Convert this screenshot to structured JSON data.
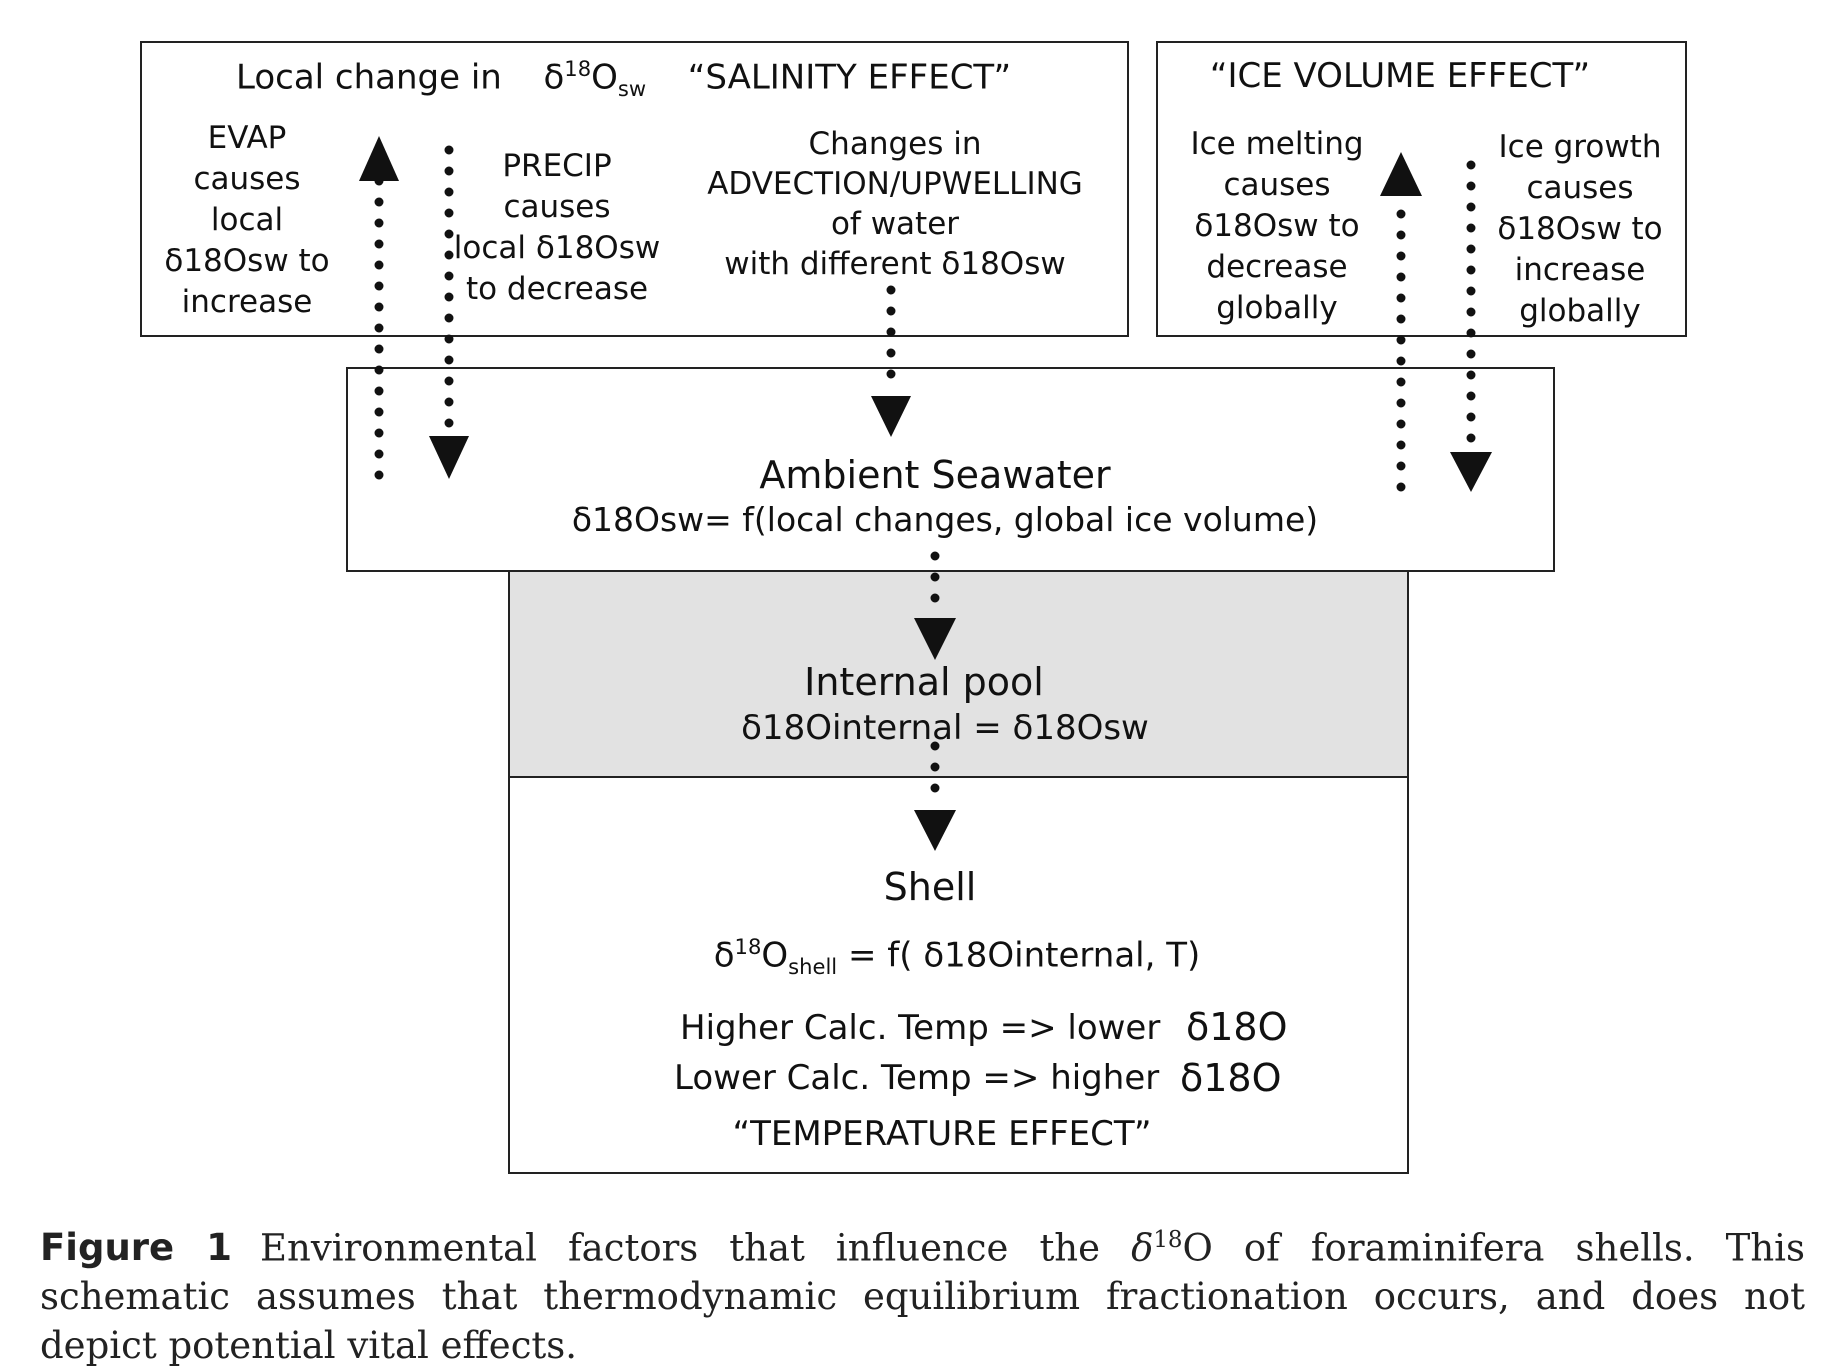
{
  "salinity_box": {
    "title_local": "Local change in",
    "delta": "δ",
    "sup18": "18",
    "O": "O",
    "sub_sw": "sw",
    "title_effect": "“SALINITY EFFECT”",
    "evap": [
      "EVAP",
      "causes",
      "local",
      "δ18Osw to",
      "increase"
    ],
    "precip": [
      "PRECIP",
      "causes",
      "local δ18Osw",
      "to decrease"
    ],
    "advection": [
      "Changes in",
      "ADVECTION/UPWELLING",
      "of water",
      "with different δ18Osw"
    ]
  },
  "ice_box": {
    "title": "“ICE VOLUME EFFECT”",
    "melting": [
      "Ice melting",
      "causes",
      "δ18Osw to",
      "decrease",
      "globally"
    ],
    "growth": [
      "Ice growth",
      "causes",
      "δ18Osw to",
      "increase",
      "globally"
    ]
  },
  "ambient_box": {
    "title": "Ambient Seawater",
    "equation": "δ18Osw= f(local changes, global ice volume)"
  },
  "internal_box": {
    "title": "Internal pool",
    "equation": "δ18Ointernal = δ18Osw",
    "fill_color": "#e2e2e2"
  },
  "shell_box": {
    "title": "Shell",
    "eq_main": "O",
    "eq_sub": "shell",
    "eq_rest": "= f( δ18Ointernal, T)",
    "higher_text": "Higher Calc. Temp => lower",
    "lower_text": "Lower Calc. Temp => higher",
    "delta_o": "δ18O",
    "effect": "“TEMPERATURE EFFECT”"
  },
  "caption": {
    "label": "Figure 1",
    "text_before": "Environmental factors that influence the",
    "delta_italic": "δ",
    "sup": "18",
    "text_after": "O of foraminifera shells. This schematic assumes that thermodynamic equilibrium fractionation occurs, and does not depict potential vital effects."
  }
}
